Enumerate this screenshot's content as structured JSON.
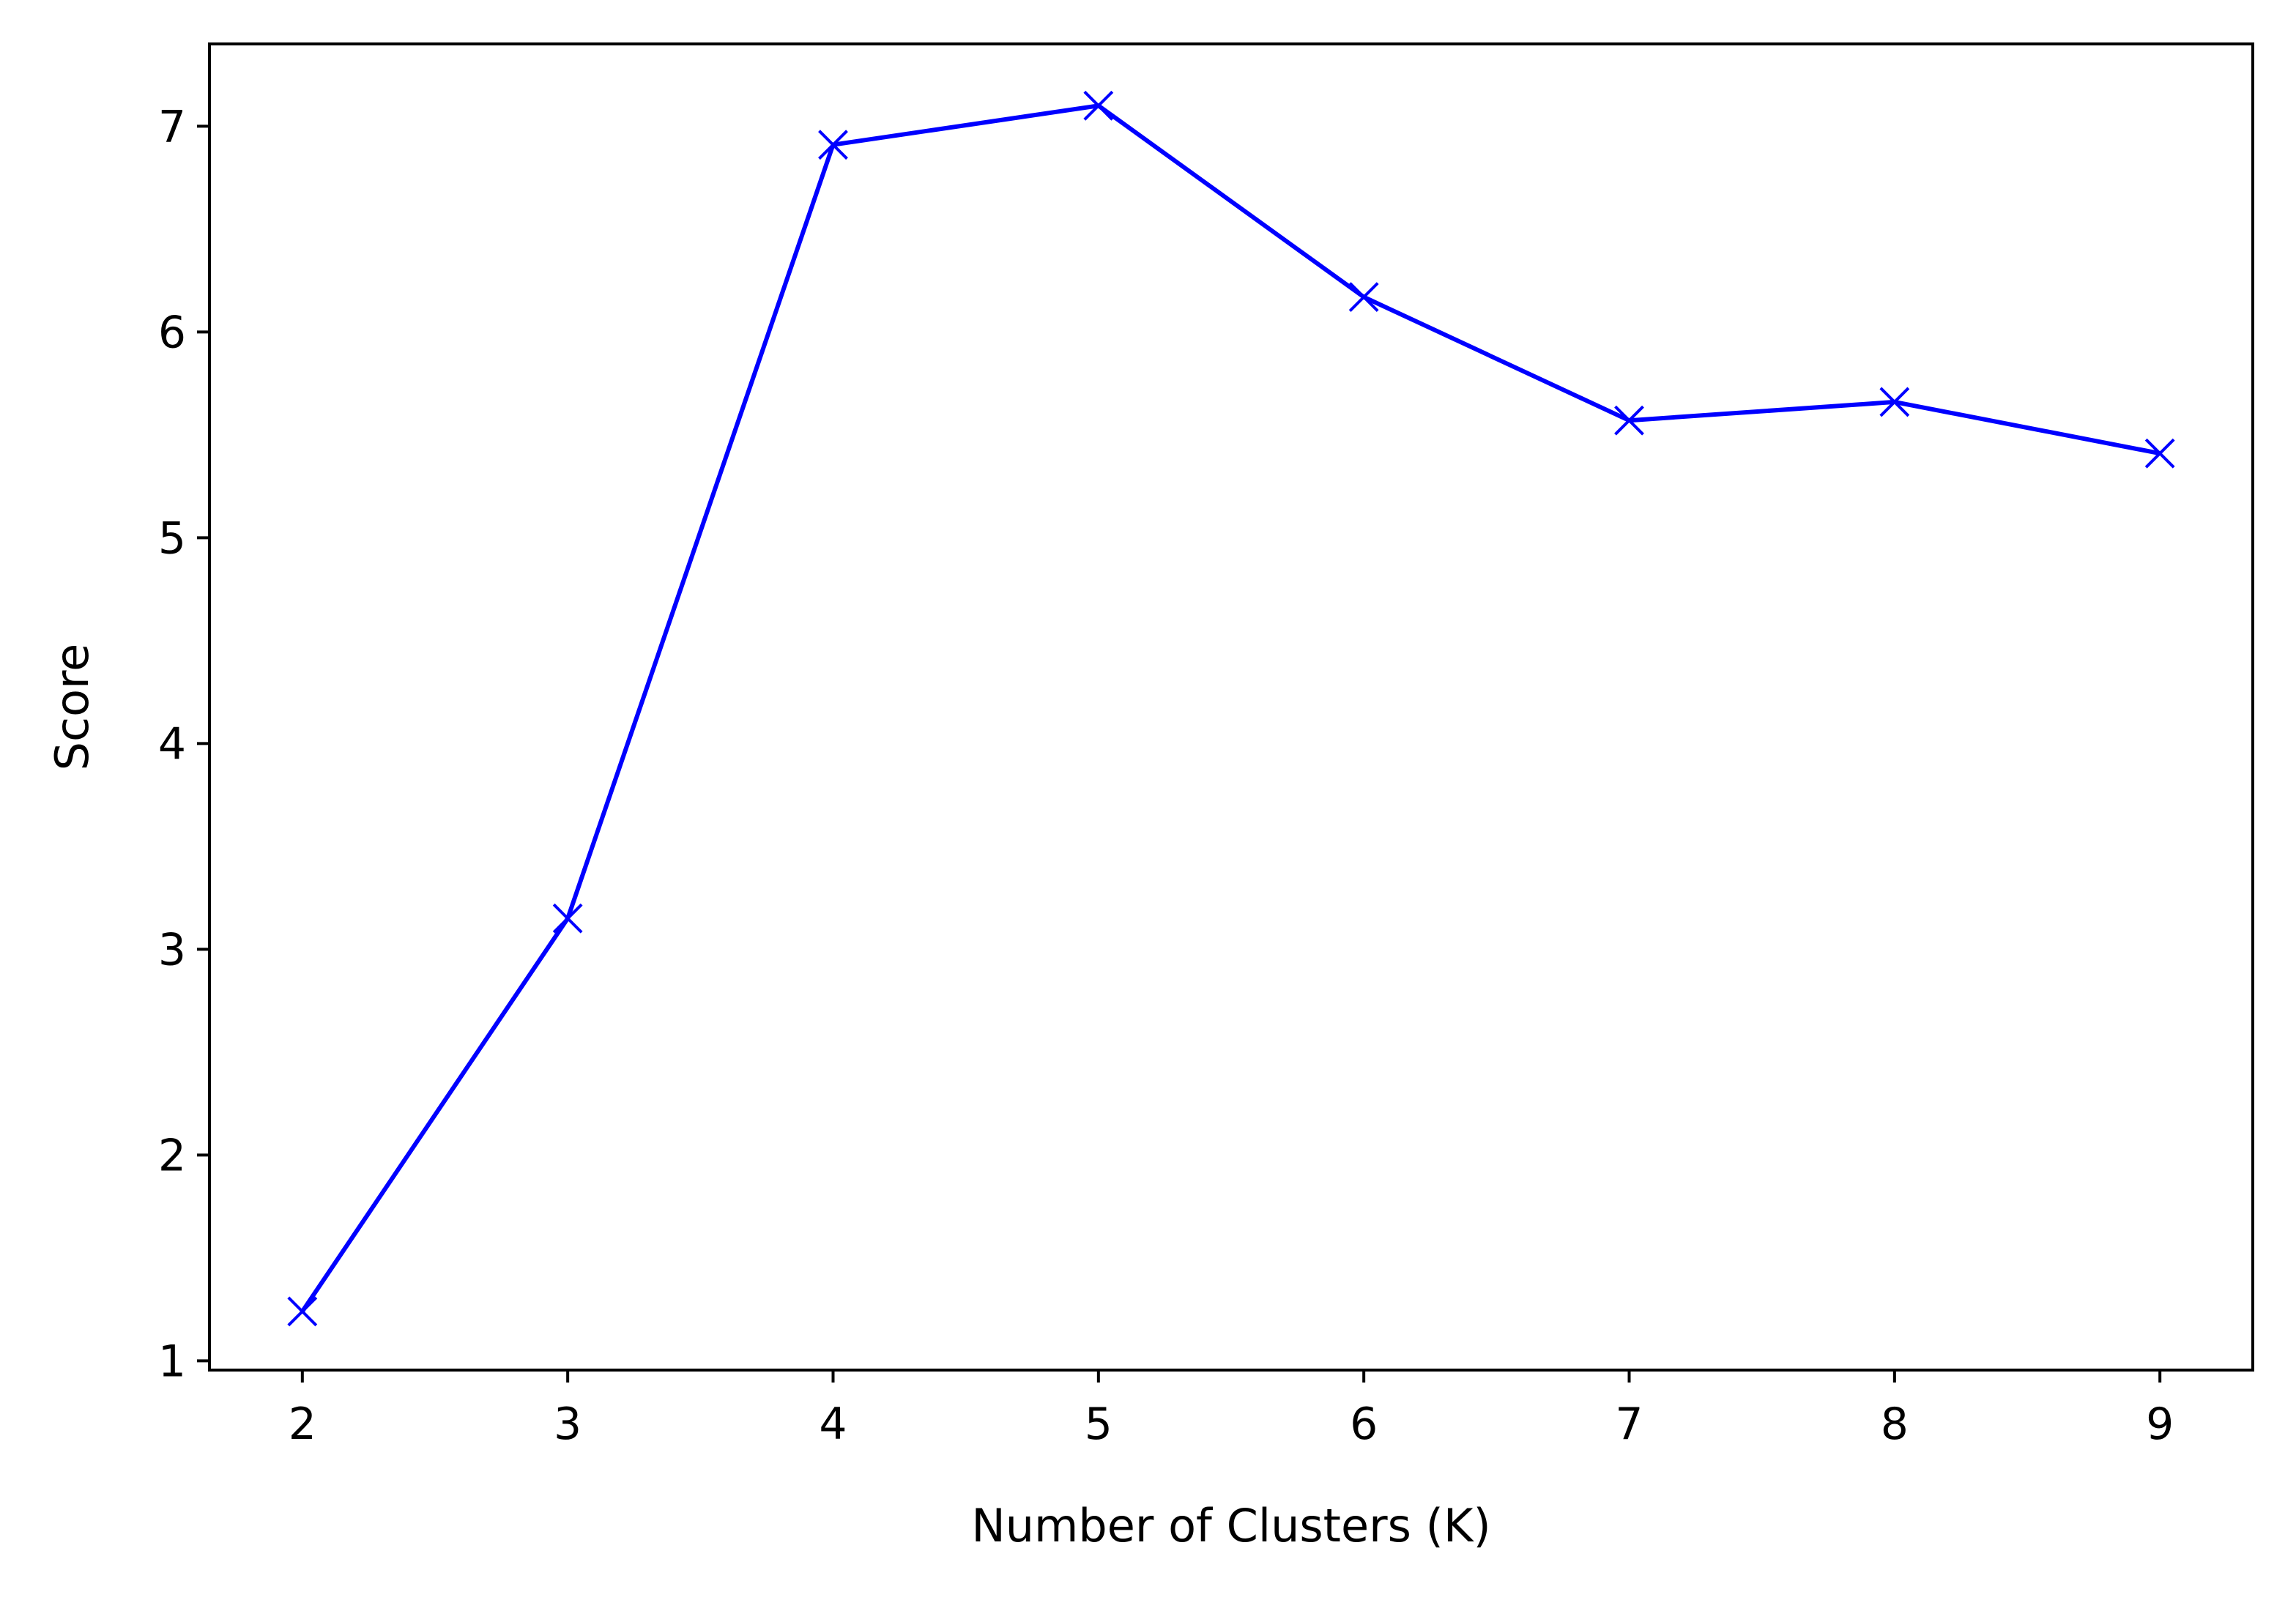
{
  "chart_data": {
    "type": "line",
    "title": "",
    "xlabel": "Number of Clusters (K)",
    "ylabel": "Score",
    "x": [
      2,
      3,
      4,
      5,
      6,
      7,
      8,
      9
    ],
    "series": [
      {
        "values": [
          1.24,
          3.15,
          6.91,
          7.1,
          6.17,
          5.57,
          5.66,
          5.41
        ],
        "color": "#0000ff",
        "marker": "x"
      }
    ],
    "xticks": [
      "2",
      "3",
      "4",
      "5",
      "6",
      "7",
      "8",
      "9"
    ],
    "yticks": [
      "1",
      "2",
      "3",
      "4",
      "5",
      "6",
      "7"
    ],
    "xlim": [
      1.65,
      9.35
    ],
    "ylim": [
      0.955,
      7.4
    ],
    "grid": false,
    "legend": "none"
  }
}
